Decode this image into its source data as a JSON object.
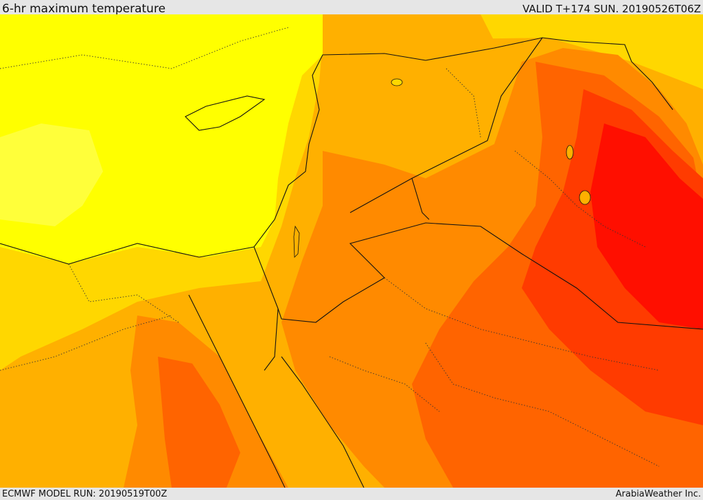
{
  "header": {
    "title": "6-hr maximum temperature",
    "valid": "VALID T+174 SUN. 20190526T06Z"
  },
  "footer": {
    "model_run": "ECMWF MODEL RUN: 20190519T00Z",
    "credit": "ArabiaWeather Inc."
  },
  "colors": {
    "warm_yellow": "#ffff00",
    "golden": "#ffd700",
    "amber": "#ffb000",
    "orange": "#ff8a00",
    "deep_orange": "#ff6400",
    "red_orange": "#ff3b00",
    "red": "#ff0f00",
    "border": "#111111"
  }
}
